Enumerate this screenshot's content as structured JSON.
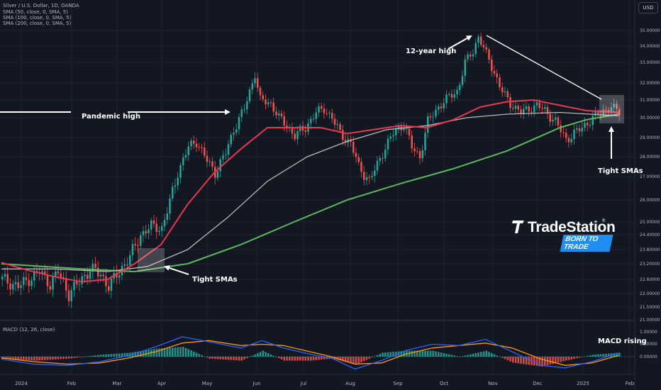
{
  "header": {
    "title": "Silver / U.S. Dollar, 1D, OANDA",
    "sma_lines": [
      "SMA (50, close, 0, SMA, 5)",
      "SMA (100, close, 0, SMA, 5)",
      "SMA (200, close, 0, SMA, 5)"
    ]
  },
  "currency_button": "USD",
  "macd_label": "MACD (12, 26, close)",
  "logo": {
    "name": "TradeStation",
    "tagline": "BORN TO TRADE"
  },
  "annotations": {
    "pandemic_high": "Pandemic high",
    "twelve_year_high": "12-year high",
    "tight_smas_left": "Tight SMAs",
    "tight_smas_right": "Tight SMAs",
    "macd_rising": "MACD rising"
  },
  "colors": {
    "background": "#131722",
    "up": "#26a69a",
    "down": "#ef5350",
    "sma50": "#e8374f",
    "sma100": "#b8b8b8",
    "sma200": "#5cb85c",
    "macd_line": "#2962ff",
    "signal_line": "#ff9800"
  },
  "chart_data": [
    {
      "type": "candlestick",
      "title": "Silver / U.S. Dollar, 1D, OANDA",
      "x": [
        "2024",
        "Feb",
        "Mar",
        "Apr",
        "May",
        "Jun",
        "Jul",
        "Aug",
        "Sep",
        "Oct",
        "Nov",
        "Dec",
        "2025",
        "Feb"
      ],
      "price_ticks": [
        "35.00000",
        "34.00000",
        "33.00000",
        "32.00000",
        "31.00000",
        "30.00000",
        "29.00000",
        "28.00000",
        "27.00000",
        "26.00000",
        "25.00000",
        "24.40000",
        "23.80000",
        "23.20000",
        "22.60000",
        "22.00000",
        "21.50000",
        "21.00000"
      ],
      "close_path": [
        [
          0,
          22.6
        ],
        [
          6,
          22.3
        ],
        [
          10,
          22.6
        ],
        [
          14,
          22.9
        ],
        [
          18,
          22.4
        ],
        [
          21,
          22.9
        ],
        [
          25,
          22.0
        ],
        [
          29,
          22.5
        ],
        [
          33,
          23.0
        ],
        [
          37,
          22.8
        ],
        [
          40,
          22.3
        ],
        [
          44,
          22.9
        ],
        [
          48,
          23.5
        ],
        [
          52,
          24.4
        ],
        [
          56,
          24.8
        ],
        [
          60,
          24.7
        ],
        [
          63,
          25.9
        ],
        [
          66,
          27.2
        ],
        [
          70,
          28.5
        ],
        [
          73,
          28.8
        ],
        [
          77,
          27.8
        ],
        [
          80,
          27.2
        ],
        [
          84,
          28.2
        ],
        [
          87,
          29.4
        ],
        [
          91,
          30.5
        ],
        [
          95,
          32.5
        ],
        [
          97,
          31.0
        ],
        [
          101,
          30.8
        ],
        [
          104,
          30.0
        ],
        [
          107,
          29.6
        ],
        [
          110,
          29.1
        ],
        [
          114,
          29.5
        ],
        [
          118,
          30.3
        ],
        [
          121,
          30.5
        ],
        [
          124,
          30.0
        ],
        [
          127,
          29.2
        ],
        [
          131,
          28.7
        ],
        [
          134,
          27.5
        ],
        [
          138,
          26.8
        ],
        [
          141,
          27.6
        ],
        [
          144,
          28.5
        ],
        [
          147,
          29.2
        ],
        [
          151,
          29.7
        ],
        [
          154,
          28.5
        ],
        [
          157,
          28.0
        ],
        [
          160,
          29.8
        ],
        [
          164,
          30.6
        ],
        [
          168,
          31.2
        ],
        [
          171,
          31.5
        ],
        [
          174,
          33.0
        ],
        [
          177,
          33.7
        ],
        [
          179,
          34.6
        ],
        [
          182,
          33.5
        ],
        [
          185,
          32.5
        ],
        [
          188,
          31.5
        ],
        [
          191,
          30.8
        ],
        [
          195,
          30.3
        ],
        [
          198,
          30.5
        ],
        [
          201,
          30.7
        ],
        [
          204,
          30.4
        ],
        [
          208,
          29.8
        ],
        [
          212,
          28.9
        ],
        [
          215,
          29.2
        ],
        [
          218,
          29.5
        ],
        [
          222,
          30.0
        ],
        [
          225,
          30.3
        ],
        [
          229,
          30.6
        ],
        [
          232,
          30.3
        ]
      ],
      "sma_50": [
        [
          0,
          23.25
        ],
        [
          10,
          22.95
        ],
        [
          20,
          22.7
        ],
        [
          30,
          22.5
        ],
        [
          40,
          22.6
        ],
        [
          50,
          23.2
        ],
        [
          60,
          24.0
        ],
        [
          70,
          25.8
        ],
        [
          80,
          27.2
        ],
        [
          90,
          28.4
        ],
        [
          100,
          29.5
        ],
        [
          110,
          29.5
        ],
        [
          120,
          29.5
        ],
        [
          130,
          29.2
        ],
        [
          140,
          29.4
        ],
        [
          150,
          29.6
        ],
        [
          160,
          29.5
        ],
        [
          170,
          29.9
        ],
        [
          180,
          30.6
        ],
        [
          190,
          30.9
        ],
        [
          200,
          31.0
        ],
        [
          210,
          30.7
        ],
        [
          220,
          30.4
        ],
        [
          232,
          30.3
        ]
      ],
      "sma_100": [
        [
          0,
          23.0
        ],
        [
          20,
          23.0
        ],
        [
          40,
          22.9
        ],
        [
          55,
          23.1
        ],
        [
          70,
          23.8
        ],
        [
          85,
          25.2
        ],
        [
          100,
          26.8
        ],
        [
          115,
          28.0
        ],
        [
          130,
          28.8
        ],
        [
          145,
          29.4
        ],
        [
          160,
          29.6
        ],
        [
          175,
          30.0
        ],
        [
          190,
          30.2
        ],
        [
          210,
          30.3
        ],
        [
          232,
          30.1
        ]
      ],
      "sma_200": [
        [
          0,
          23.2
        ],
        [
          30,
          23.0
        ],
        [
          50,
          22.9
        ],
        [
          70,
          23.2
        ],
        [
          90,
          24.0
        ],
        [
          110,
          25.0
        ],
        [
          130,
          26.0
        ],
        [
          150,
          26.7
        ],
        [
          170,
          27.4
        ],
        [
          190,
          28.3
        ],
        [
          210,
          29.5
        ],
        [
          220,
          29.9
        ],
        [
          232,
          30.2
        ]
      ],
      "annotations": [
        "Pandemic high",
        "12-year high",
        "Tight SMAs",
        "Tight SMAs"
      ]
    },
    {
      "type": "macd",
      "title": "MACD (12, 26, close)",
      "y_ticks": [
        "1.00000",
        "0.50000",
        "0.00000"
      ],
      "macd_path": [
        [
          0,
          -0.1
        ],
        [
          12,
          -0.3
        ],
        [
          25,
          -0.35
        ],
        [
          37,
          -0.2
        ],
        [
          48,
          0.05
        ],
        [
          58,
          0.4
        ],
        [
          68,
          0.8
        ],
        [
          78,
          0.6
        ],
        [
          90,
          0.35
        ],
        [
          98,
          0.65
        ],
        [
          106,
          0.35
        ],
        [
          116,
          0.1
        ],
        [
          124,
          -0.05
        ],
        [
          133,
          -0.5
        ],
        [
          143,
          -0.15
        ],
        [
          152,
          0.25
        ],
        [
          162,
          0.5
        ],
        [
          172,
          0.45
        ],
        [
          182,
          0.7
        ],
        [
          192,
          0.2
        ],
        [
          203,
          -0.35
        ],
        [
          212,
          -0.45
        ],
        [
          222,
          -0.2
        ],
        [
          232,
          0.15
        ]
      ],
      "signal_path": [
        [
          0,
          -0.05
        ],
        [
          12,
          -0.2
        ],
        [
          25,
          -0.3
        ],
        [
          37,
          -0.25
        ],
        [
          48,
          -0.05
        ],
        [
          58,
          0.2
        ],
        [
          68,
          0.55
        ],
        [
          78,
          0.65
        ],
        [
          90,
          0.45
        ],
        [
          98,
          0.5
        ],
        [
          106,
          0.45
        ],
        [
          116,
          0.2
        ],
        [
          124,
          0.0
        ],
        [
          133,
          -0.3
        ],
        [
          143,
          -0.25
        ],
        [
          152,
          0.1
        ],
        [
          162,
          0.35
        ],
        [
          172,
          0.45
        ],
        [
          182,
          0.55
        ],
        [
          192,
          0.35
        ],
        [
          203,
          -0.1
        ],
        [
          212,
          -0.35
        ],
        [
          222,
          -0.25
        ],
        [
          232,
          0.05
        ]
      ],
      "annotations": [
        "MACD rising"
      ]
    }
  ]
}
